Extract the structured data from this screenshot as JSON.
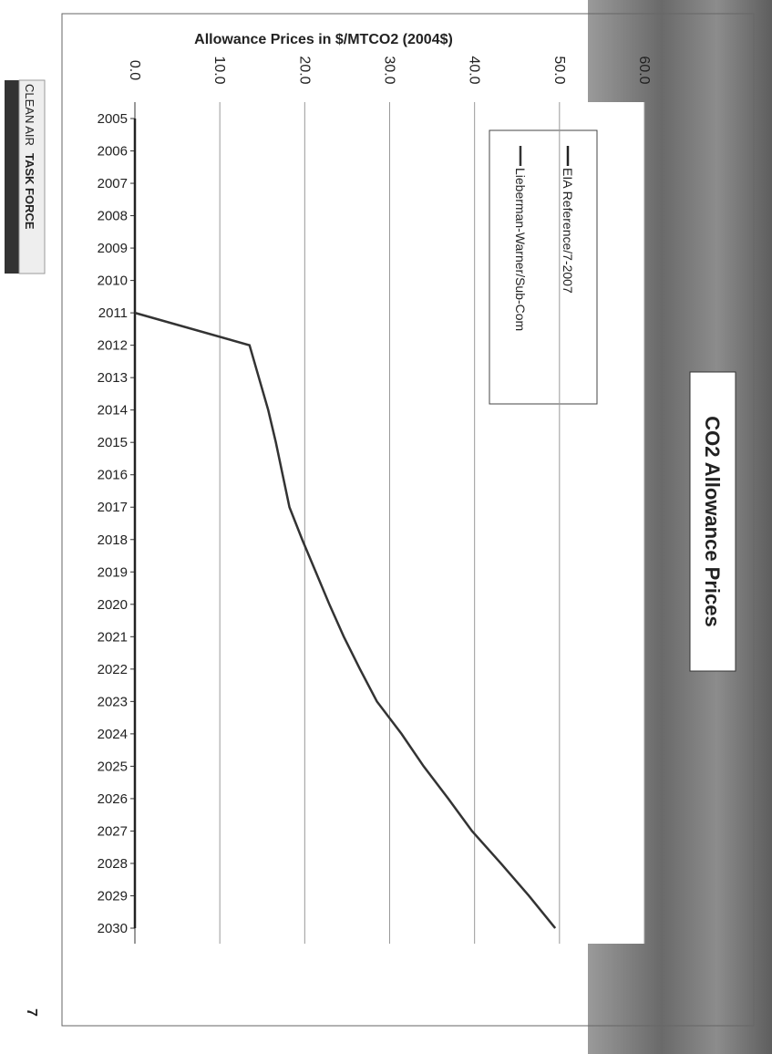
{
  "page": {
    "brand_light": "CLEAN AIR",
    "brand_bold": "TASK FORCE",
    "page_number": "7"
  },
  "chart_data": {
    "type": "line",
    "title": "CO2 Allowance Prices",
    "y_label": "Allowance Prices in $/MTCO2 (2004$)",
    "categories": [
      "2005",
      "2006",
      "2007",
      "2008",
      "2009",
      "2010",
      "2011",
      "2012",
      "2013",
      "2014",
      "2015",
      "2016",
      "2017",
      "2018",
      "2019",
      "2020",
      "2021",
      "2022",
      "2023",
      "2024",
      "2025",
      "2026",
      "2027",
      "2028",
      "2029",
      "2030"
    ],
    "series": [
      {
        "name": "EIA Reference/7-2007",
        "color": "#222222",
        "values": [
          0,
          0,
          0,
          0,
          0,
          0,
          0,
          0,
          0,
          0,
          0,
          0,
          0,
          0,
          0,
          0,
          0,
          0,
          0,
          0,
          0,
          0,
          0,
          0,
          0,
          0
        ]
      },
      {
        "name": "Lieberman-Warner/Sub-Com",
        "color": "#333333",
        "values": [
          null,
          null,
          null,
          null,
          null,
          null,
          0,
          13.5,
          14.6,
          15.7,
          16.6,
          17.4,
          18.2,
          19.7,
          21.3,
          22.9,
          24.6,
          26.5,
          28.5,
          31.4,
          34.0,
          36.9,
          39.7,
          43.1,
          46.4,
          49.5
        ]
      }
    ],
    "ylim": [
      0,
      60
    ],
    "yticks": [
      {
        "value": 0,
        "label": "0.0"
      },
      {
        "value": 10,
        "label": "10.0"
      },
      {
        "value": 20,
        "label": "20.0"
      },
      {
        "value": 30,
        "label": "30.0"
      },
      {
        "value": 40,
        "label": "40.0"
      },
      {
        "value": 50,
        "label": "50.0"
      },
      {
        "value": 60,
        "label": "60.0"
      }
    ],
    "grid": true
  }
}
